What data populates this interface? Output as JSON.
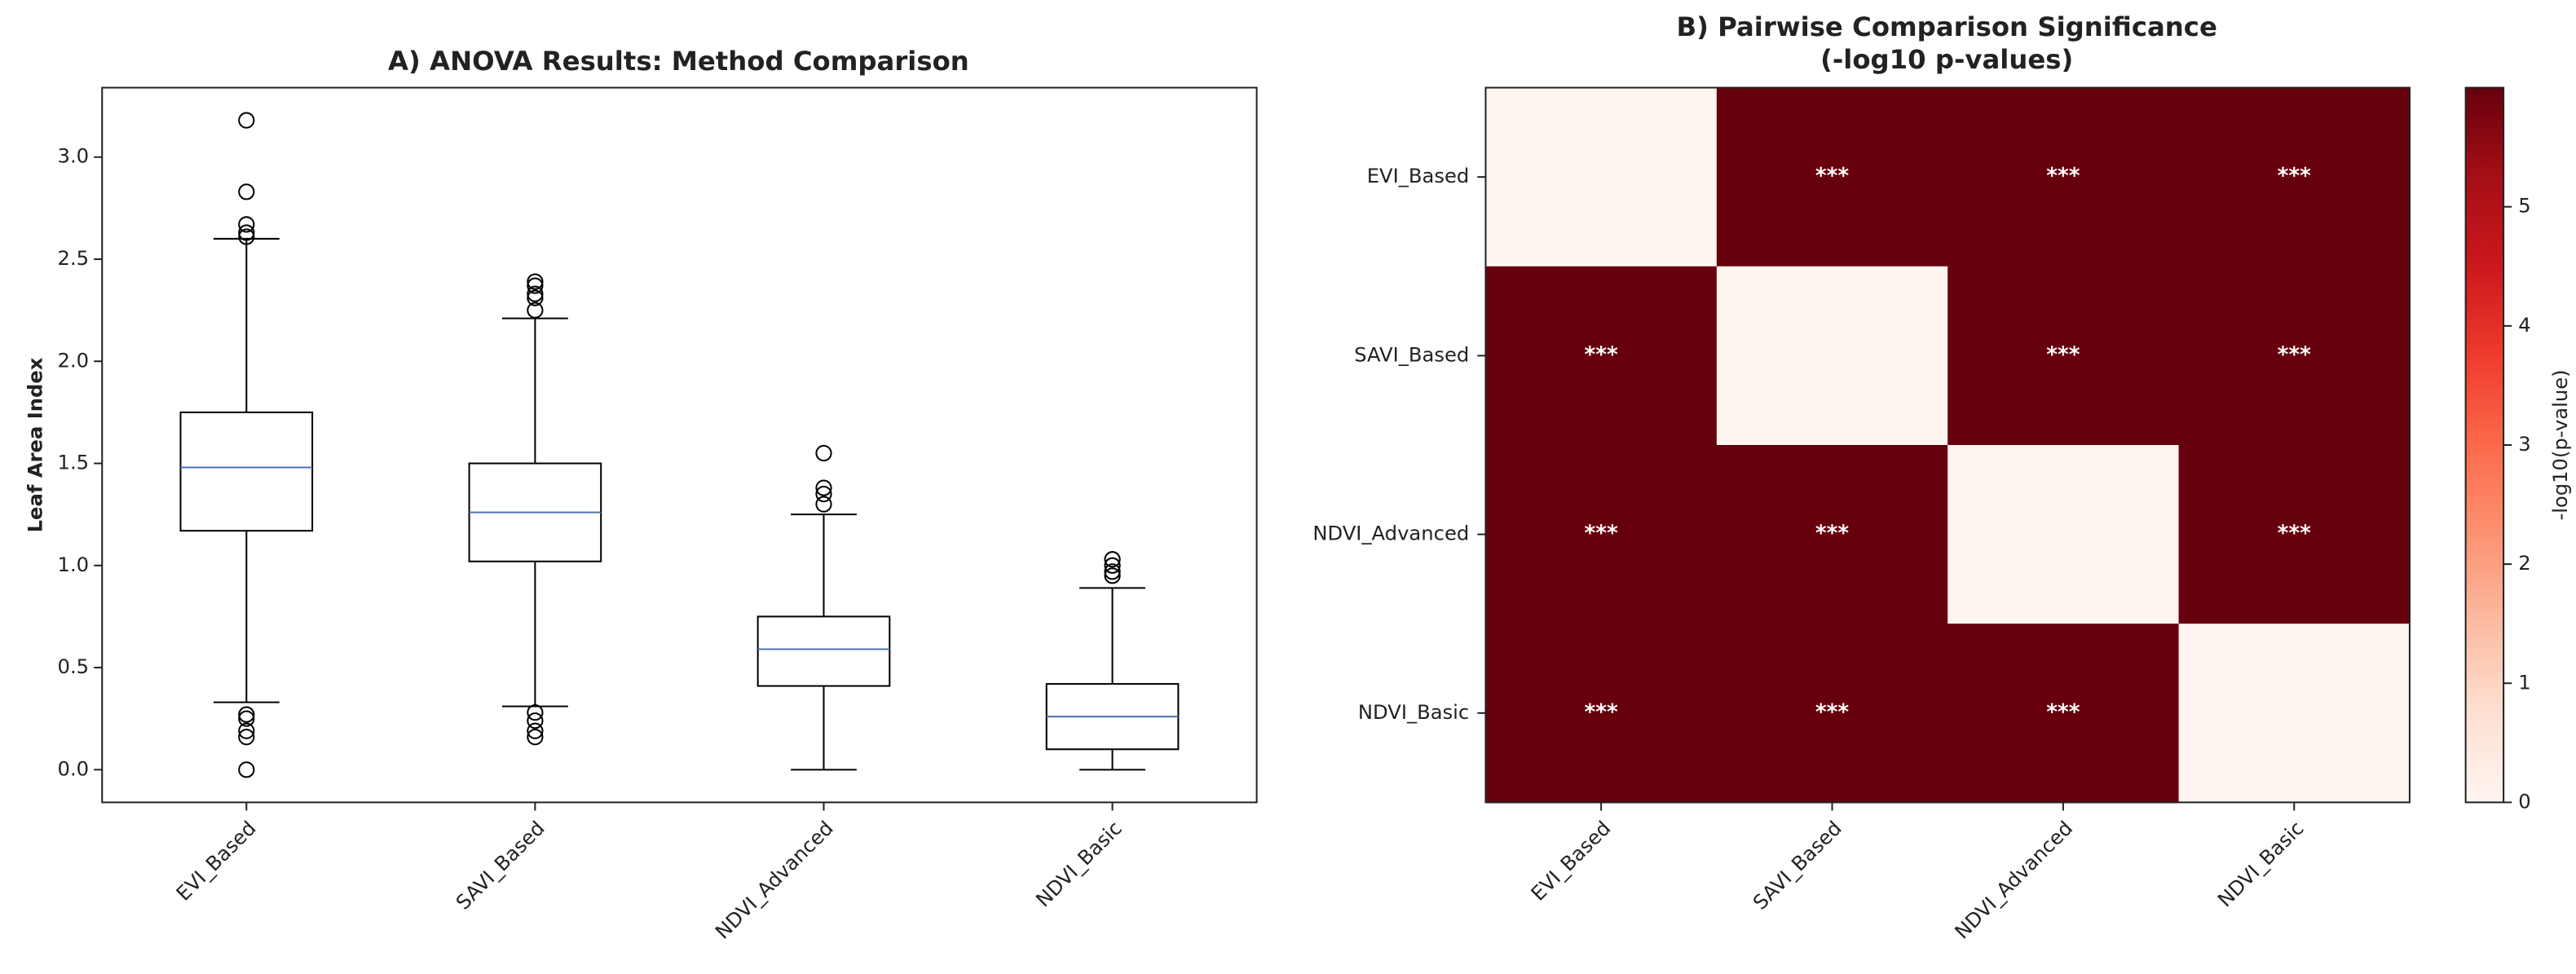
{
  "chart_data": [
    {
      "type": "box",
      "title": "A) ANOVA Results: Method Comparison",
      "ylabel": "Leaf Area Index",
      "categories": [
        "EVI_Based",
        "SAVI_Based",
        "NDVI_Advanced",
        "NDVI_Basic"
      ],
      "boxes": [
        {
          "low": 0.33,
          "q1": 1.17,
          "median": 1.48,
          "q3": 1.75,
          "high": 2.6,
          "outliers": [
            3.18,
            2.83,
            2.67,
            2.63,
            2.61,
            0.27,
            0.25,
            0.19,
            0.16,
            0.0
          ]
        },
        {
          "low": 0.31,
          "q1": 1.02,
          "median": 1.26,
          "q3": 1.5,
          "high": 2.21,
          "outliers": [
            2.39,
            2.37,
            2.33,
            2.31,
            2.25,
            0.28,
            0.24,
            0.19,
            0.16
          ]
        },
        {
          "low": 0.0,
          "q1": 0.41,
          "median": 0.59,
          "q3": 0.75,
          "high": 1.25,
          "outliers": [
            1.55,
            1.38,
            1.35,
            1.3
          ]
        },
        {
          "low": 0.0,
          "q1": 0.1,
          "median": 0.26,
          "q3": 0.42,
          "high": 0.89,
          "outliers": [
            1.03,
            1.0,
            0.97,
            0.95
          ]
        }
      ],
      "box_color": "#000000",
      "median_color": "#4c72b0",
      "ylim": [
        -0.16,
        3.34
      ],
      "yticks": [
        {
          "value": 0,
          "label": "0.0"
        },
        {
          "value": 0.5,
          "label": "0.5"
        },
        {
          "value": 1,
          "label": "1.0"
        },
        {
          "value": 1.5,
          "label": "1.5"
        },
        {
          "value": 2,
          "label": "2.0"
        },
        {
          "value": 2.5,
          "label": "2.5"
        },
        {
          "value": 3,
          "label": "3.0"
        }
      ]
    },
    {
      "type": "heatmap",
      "title": [
        "B) Pairwise Comparison Significance",
        "(-log10 p-values)"
      ],
      "x_categories": [
        "EVI_Based",
        "SAVI_Based",
        "NDVI_Advanced",
        "NDVI_Basic"
      ],
      "y_categories": [
        "EVI_Based",
        "SAVI_Based",
        "NDVI_Advanced",
        "NDVI_Basic"
      ],
      "values": [
        [
          0,
          6,
          6,
          6
        ],
        [
          6,
          0,
          6,
          6
        ],
        [
          6,
          6,
          0,
          6
        ],
        [
          6,
          6,
          6,
          0
        ]
      ],
      "value_labels": [
        [
          null,
          "***",
          "***",
          "***"
        ],
        [
          "***",
          null,
          "***",
          "***"
        ],
        [
          "***",
          "***",
          null,
          "***"
        ],
        [
          "***",
          "***",
          "***",
          null
        ]
      ],
      "colorbar_label": "-log10(p-value)",
      "clim": [
        0,
        6
      ],
      "cticks": [
        0,
        1,
        2,
        3,
        4,
        5
      ],
      "colormap": [
        "#fff5f0",
        "#fee0d2",
        "#fcbba1",
        "#fc9272",
        "#fb6a4a",
        "#ef3b2c",
        "#cb181d",
        "#a50f15",
        "#67000d"
      ]
    }
  ]
}
